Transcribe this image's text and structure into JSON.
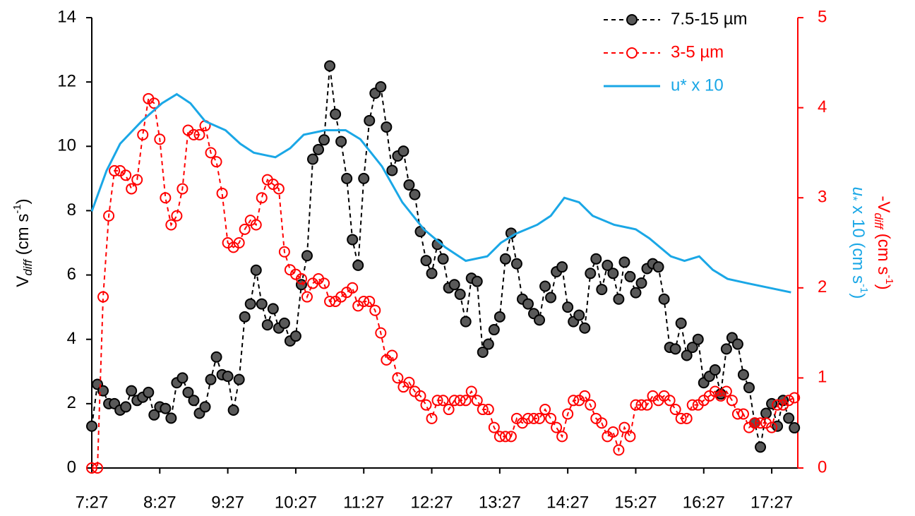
{
  "chart_data": {
    "type": "line",
    "x": [
      447,
      452,
      457,
      462,
      467,
      472,
      477,
      482,
      487,
      492,
      497,
      502,
      507,
      512,
      517,
      522,
      527,
      532,
      537,
      542,
      547,
      552,
      557,
      562,
      567,
      572,
      577,
      582,
      587,
      592,
      597,
      602,
      607,
      612,
      617,
      622,
      627,
      632,
      637,
      642,
      647,
      652,
      657,
      662,
      667,
      672,
      677,
      682,
      687,
      692,
      697,
      702,
      707,
      712,
      717,
      722,
      727,
      732,
      737,
      742,
      747,
      752,
      757,
      762,
      767,
      772,
      777,
      782,
      787,
      792,
      797,
      802,
      807,
      812,
      817,
      822,
      827,
      832,
      837,
      842,
      847,
      852,
      857,
      862,
      867,
      872,
      877,
      882,
      887,
      892,
      897,
      902,
      907,
      912,
      917,
      922,
      927,
      932,
      937,
      942,
      947,
      952,
      957,
      962,
      967,
      972,
      977,
      982,
      987,
      992,
      997,
      1002,
      1007,
      1012,
      1017,
      1022,
      1027,
      1032,
      1037,
      1042,
      1047,
      1052,
      1057,
      1062,
      1067
    ],
    "xlim": [
      447,
      1070
    ],
    "xticks": [
      {
        "value": 447,
        "label": "7:27"
      },
      {
        "value": 507,
        "label": "8:27"
      },
      {
        "value": 567,
        "label": "9:27"
      },
      {
        "value": 627,
        "label": "10:27"
      },
      {
        "value": 687,
        "label": "11:27"
      },
      {
        "value": 747,
        "label": "12:27"
      },
      {
        "value": 807,
        "label": "13:27"
      },
      {
        "value": 867,
        "label": "14:27"
      },
      {
        "value": 927,
        "label": "15:27"
      },
      {
        "value": 987,
        "label": "16:27"
      },
      {
        "value": 1047,
        "label": "17:27"
      }
    ],
    "ylim": [
      0,
      14
    ],
    "yticks": [
      0,
      2,
      4,
      6,
      8,
      10,
      12,
      14
    ],
    "y2lim": [
      0,
      5
    ],
    "y2ticks": [
      0,
      1,
      2,
      3,
      4,
      5
    ],
    "y_label": [
      "V",
      "diff",
      " (cm s",
      "-1",
      ")"
    ],
    "y2_label": [
      "-V",
      "diff",
      " (cm s",
      "-1",
      ")"
    ],
    "y2_label_2": [
      "u",
      "*",
      " x 10 (cm s",
      "-1",
      ")"
    ],
    "legend": "top-right",
    "series": [
      {
        "name": "7.5-15 µm",
        "color": "#000000",
        "marker": "#595959",
        "dashed": true,
        "values": [
          1.3,
          2.6,
          2.4,
          2.0,
          2.0,
          1.8,
          1.9,
          2.4,
          2.1,
          2.2,
          2.35,
          1.65,
          1.9,
          1.85,
          1.55,
          2.65,
          2.8,
          2.35,
          2.1,
          1.7,
          1.9,
          2.75,
          3.45,
          2.9,
          2.85,
          1.8,
          2.75,
          4.7,
          5.1,
          6.15,
          5.1,
          4.45,
          4.95,
          4.35,
          4.5,
          3.95,
          4.1,
          5.7,
          6.6,
          9.6,
          9.9,
          10.2,
          12.5,
          11.0,
          10.15,
          9.0,
          7.1,
          6.3,
          9.0,
          10.8,
          11.65,
          11.85,
          10.6,
          9.25,
          9.7,
          9.85,
          8.8,
          8.5,
          7.35,
          6.45,
          6.05,
          6.95,
          6.5,
          5.6,
          5.7,
          5.4,
          4.55,
          5.9,
          5.8,
          3.6,
          3.85,
          4.3,
          4.7,
          6.5,
          7.3,
          6.35,
          5.25,
          5.1,
          4.8,
          4.6,
          5.65,
          5.3,
          6.1,
          6.25,
          5.0,
          4.55,
          4.75,
          4.35,
          6.05,
          6.5,
          5.55,
          6.3,
          6.05,
          5.25,
          6.4,
          5.95,
          5.45,
          5.75,
          6.2,
          6.35,
          6.25,
          5.25,
          3.75,
          3.7,
          4.5,
          3.5,
          3.75,
          4.0,
          2.65,
          2.85,
          3.05,
          2.3,
          3.7,
          4.05,
          3.85,
          2.9,
          2.5,
          1.4,
          0.65,
          1.7,
          2.0,
          1.3,
          2.1,
          1.55,
          1.25
        ]
      },
      {
        "name": "3-5 µm",
        "color": "#ff0000",
        "dashed": true,
        "axis": "y2",
        "values": [
          0,
          0,
          1.9,
          2.8,
          3.3,
          3.3,
          3.25,
          3.1,
          3.2,
          3.7,
          4.1,
          4.05,
          3.65,
          3.0,
          2.7,
          2.8,
          3.1,
          3.75,
          3.7,
          3.7,
          3.8,
          3.5,
          3.4,
          3.05,
          2.5,
          2.45,
          2.5,
          2.65,
          2.75,
          2.7,
          3.0,
          3.2,
          3.15,
          3.1,
          2.4,
          2.2,
          2.15,
          2.1,
          1.9,
          2.05,
          2.1,
          2.05,
          1.85,
          1.85,
          1.9,
          1.95,
          2.0,
          1.8,
          1.85,
          1.85,
          1.75,
          1.5,
          1.2,
          1.25,
          1.0,
          0.9,
          0.95,
          0.85,
          0.8,
          0.7,
          0.55,
          0.75,
          0.75,
          0.65,
          0.75,
          0.75,
          0.75,
          0.85,
          0.75,
          0.65,
          0.65,
          0.45,
          0.35,
          0.35,
          0.35,
          0.55,
          0.5,
          0.55,
          0.55,
          0.55,
          0.65,
          0.55,
          0.45,
          0.35,
          0.6,
          0.75,
          0.75,
          0.8,
          0.7,
          0.55,
          0.5,
          0.35,
          0.4,
          0.2,
          0.45,
          0.35,
          0.7,
          0.7,
          0.7,
          0.8,
          0.75,
          0.8,
          0.75,
          0.65,
          0.55,
          0.55,
          0.7,
          0.7,
          0.75,
          0.8,
          0.85,
          0.8,
          0.85,
          0.75,
          0.6,
          0.6,
          0.45,
          0.5,
          0.5,
          0.5,
          0.45,
          0.7,
          0.7,
          0.75,
          0.78
        ]
      },
      {
        "name": "u* x 10",
        "color": "#1aa7e6",
        "dashed": false,
        "axis": "y2",
        "x": [
          447,
          460,
          472,
          491,
          509,
          522,
          534,
          547,
          565,
          578,
          590,
          609,
          622,
          634,
          653,
          671,
          684,
          703,
          721,
          740,
          759,
          777,
          796,
          808,
          821,
          840,
          852,
          864,
          877,
          889,
          908,
          927,
          939,
          958,
          970,
          983,
          995,
          1008,
          1026,
          1045,
          1064
        ],
        "values": [
          2.85,
          3.3,
          3.6,
          3.85,
          4.05,
          4.15,
          4.05,
          3.85,
          3.75,
          3.6,
          3.5,
          3.45,
          3.55,
          3.7,
          3.75,
          3.75,
          3.65,
          3.35,
          2.95,
          2.65,
          2.45,
          2.3,
          2.35,
          2.5,
          2.6,
          2.7,
          2.8,
          3.0,
          2.95,
          2.8,
          2.7,
          2.65,
          2.55,
          2.35,
          2.3,
          2.35,
          2.2,
          2.1,
          2.05,
          2.0,
          1.95
        ]
      }
    ]
  }
}
